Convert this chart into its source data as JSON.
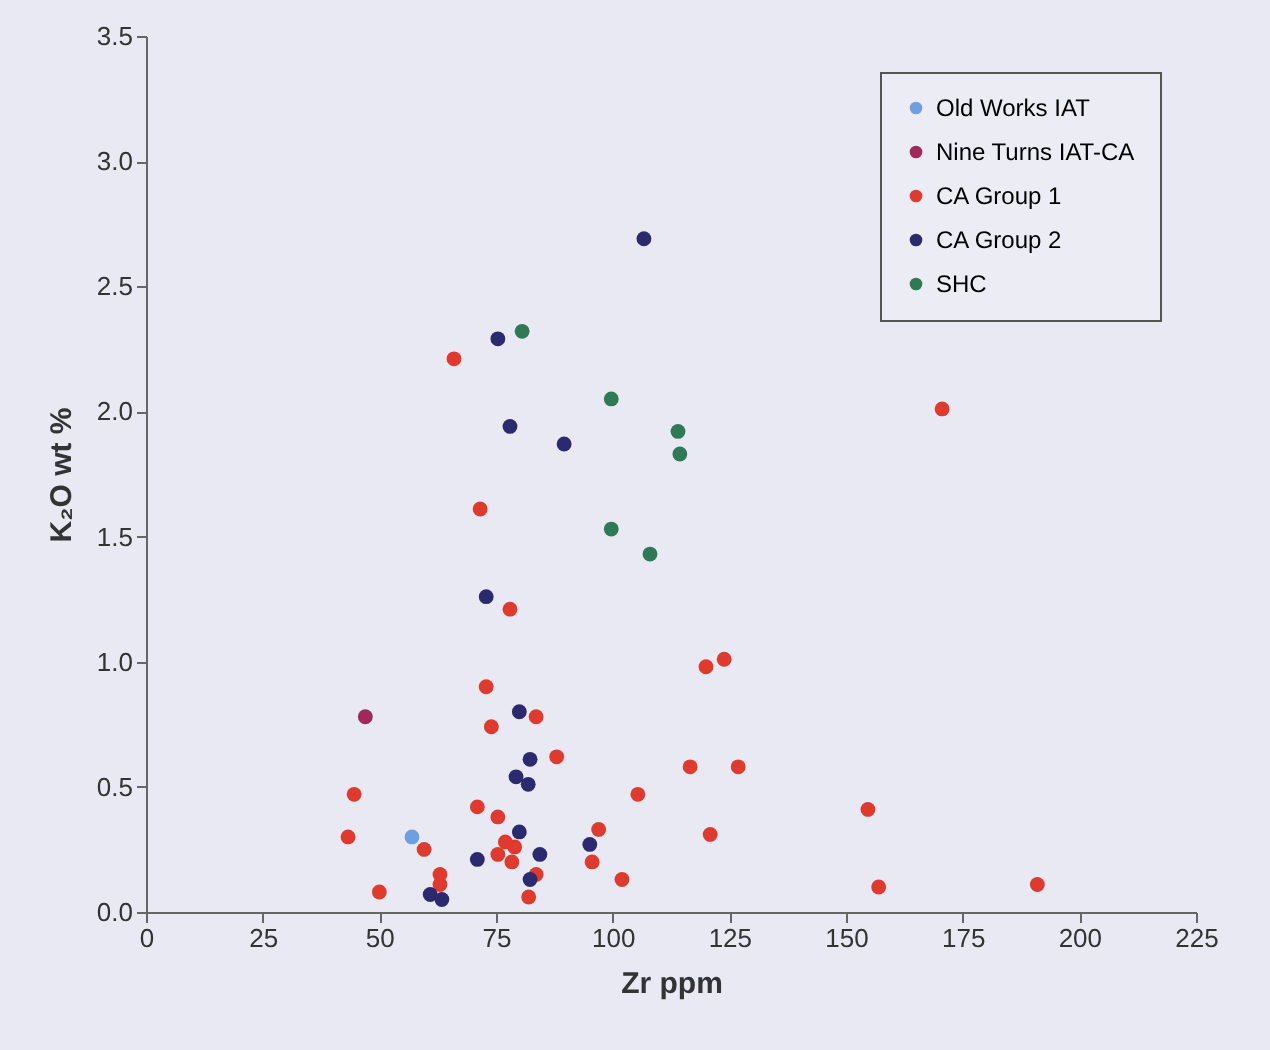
{
  "chart_data": {
    "type": "scatter",
    "xlabel": "Zr ppm",
    "ylabel": "K₂O wt %",
    "xlim": [
      0,
      225
    ],
    "xticks": [
      0,
      25,
      50,
      75,
      100,
      125,
      150,
      175,
      200,
      225
    ],
    "ylim": [
      0,
      3.5
    ],
    "yticks": [
      {
        "value": 0,
        "label": "0.0"
      },
      0.5,
      {
        "value": 1,
        "label": "1.0"
      },
      1.5,
      {
        "value": 2,
        "label": "2.0"
      },
      2.5,
      {
        "value": 3,
        "label": "3.0"
      },
      3.5
    ],
    "grid": false,
    "legend": "top right",
    "marker": "circle",
    "series": [
      {
        "name": "Old Works IAT",
        "color": "#6f9fe0",
        "x": [
          57
        ],
        "values": [
          0.3
        ]
      },
      {
        "name": "Nine Turns IAT-CA",
        "color": "#a0285a",
        "x": [
          47
        ],
        "values": [
          0.78
        ]
      },
      {
        "name": "CA Group 1",
        "color": "#e03a2e",
        "x": [
          66,
          71.6,
          78,
          72.9,
          74,
          83.6,
          88,
          71,
          75.4,
          59.6,
          43.3,
          44.6,
          50,
          63,
          63,
          77,
          75.4,
          79,
          78.4,
          83.6,
          82,
          97,
          95.6,
          102,
          105.4,
          116.6,
          126.9,
          120.9,
          120,
          123.9,
          170.6,
          154.7,
          157,
          191
        ],
        "values": [
          2.21,
          1.61,
          1.21,
          0.9,
          0.74,
          0.78,
          0.62,
          0.42,
          0.38,
          0.25,
          0.3,
          0.47,
          0.08,
          0.15,
          0.11,
          0.28,
          0.23,
          0.26,
          0.2,
          0.15,
          0.06,
          0.33,
          0.2,
          0.13,
          0.47,
          0.58,
          0.58,
          0.31,
          0.98,
          1.01,
          2.01,
          0.41,
          0.1,
          0.11
        ]
      },
      {
        "name": "CA Group 2",
        "color": "#2c2a6e",
        "x": [
          106.7,
          75.4,
          78,
          89.6,
          72.9,
          80,
          82.3,
          79.3,
          81.9,
          80,
          71,
          84.4,
          82.3,
          95.1,
          60.9,
          63.4
        ],
        "values": [
          2.69,
          2.29,
          1.94,
          1.87,
          1.26,
          0.8,
          0.61,
          0.54,
          0.51,
          0.32,
          0.21,
          0.23,
          0.13,
          0.27,
          0.07,
          0.05
        ]
      },
      {
        "name": "SHC",
        "color": "#2e7a55",
        "x": [
          80.6,
          99.7,
          114,
          114.4,
          99.7,
          108
        ],
        "values": [
          2.32,
          2.05,
          1.92,
          1.83,
          1.53,
          1.43
        ]
      }
    ]
  }
}
